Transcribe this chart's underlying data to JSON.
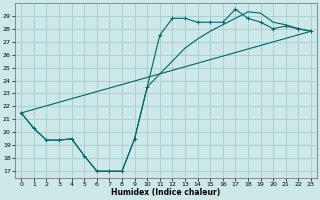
{
  "xlabel": "Humidex (Indice chaleur)",
  "bg_color": "#cce8e8",
  "grid_color": "#aacccc",
  "line_color": "#006666",
  "ylim": [
    16.5,
    30
  ],
  "xlim": [
    -0.5,
    23.5
  ],
  "yticks": [
    17,
    18,
    19,
    20,
    21,
    22,
    23,
    24,
    25,
    26,
    27,
    28,
    29
  ],
  "xticks": [
    0,
    1,
    2,
    3,
    4,
    5,
    6,
    7,
    8,
    9,
    10,
    11,
    12,
    13,
    14,
    15,
    16,
    17,
    18,
    19,
    20,
    21,
    22,
    23
  ],
  "series_marker": {
    "x": [
      0,
      1,
      2,
      3,
      4,
      5,
      6,
      7,
      8,
      9,
      10,
      11,
      12,
      13,
      14,
      15,
      16,
      17,
      18,
      19,
      20,
      21,
      22,
      23
    ],
    "y": [
      21.5,
      20.3,
      19.4,
      19.4,
      19.5,
      18.2,
      17.0,
      17.0,
      17.0,
      19.5,
      23.5,
      27.5,
      28.8,
      28.8,
      28.5,
      28.5,
      28.5,
      29.5,
      28.8,
      28.5,
      28.0,
      28.2,
      28.0,
      27.8
    ]
  },
  "series_linear": {
    "x": [
      0,
      23
    ],
    "y": [
      21.5,
      27.8
    ]
  },
  "series_upper": {
    "x": [
      0,
      1,
      2,
      3,
      4,
      5,
      6,
      7,
      8,
      9,
      10,
      11,
      12,
      13,
      14,
      15,
      16,
      17,
      18,
      19,
      20,
      21,
      22,
      23
    ],
    "y": [
      21.5,
      20.3,
      19.4,
      19.4,
      19.5,
      18.2,
      17.0,
      17.0,
      17.0,
      19.5,
      23.5,
      24.5,
      25.5,
      26.5,
      27.2,
      27.8,
      28.3,
      28.8,
      29.3,
      29.2,
      28.5,
      28.3,
      28.0,
      27.8
    ]
  }
}
